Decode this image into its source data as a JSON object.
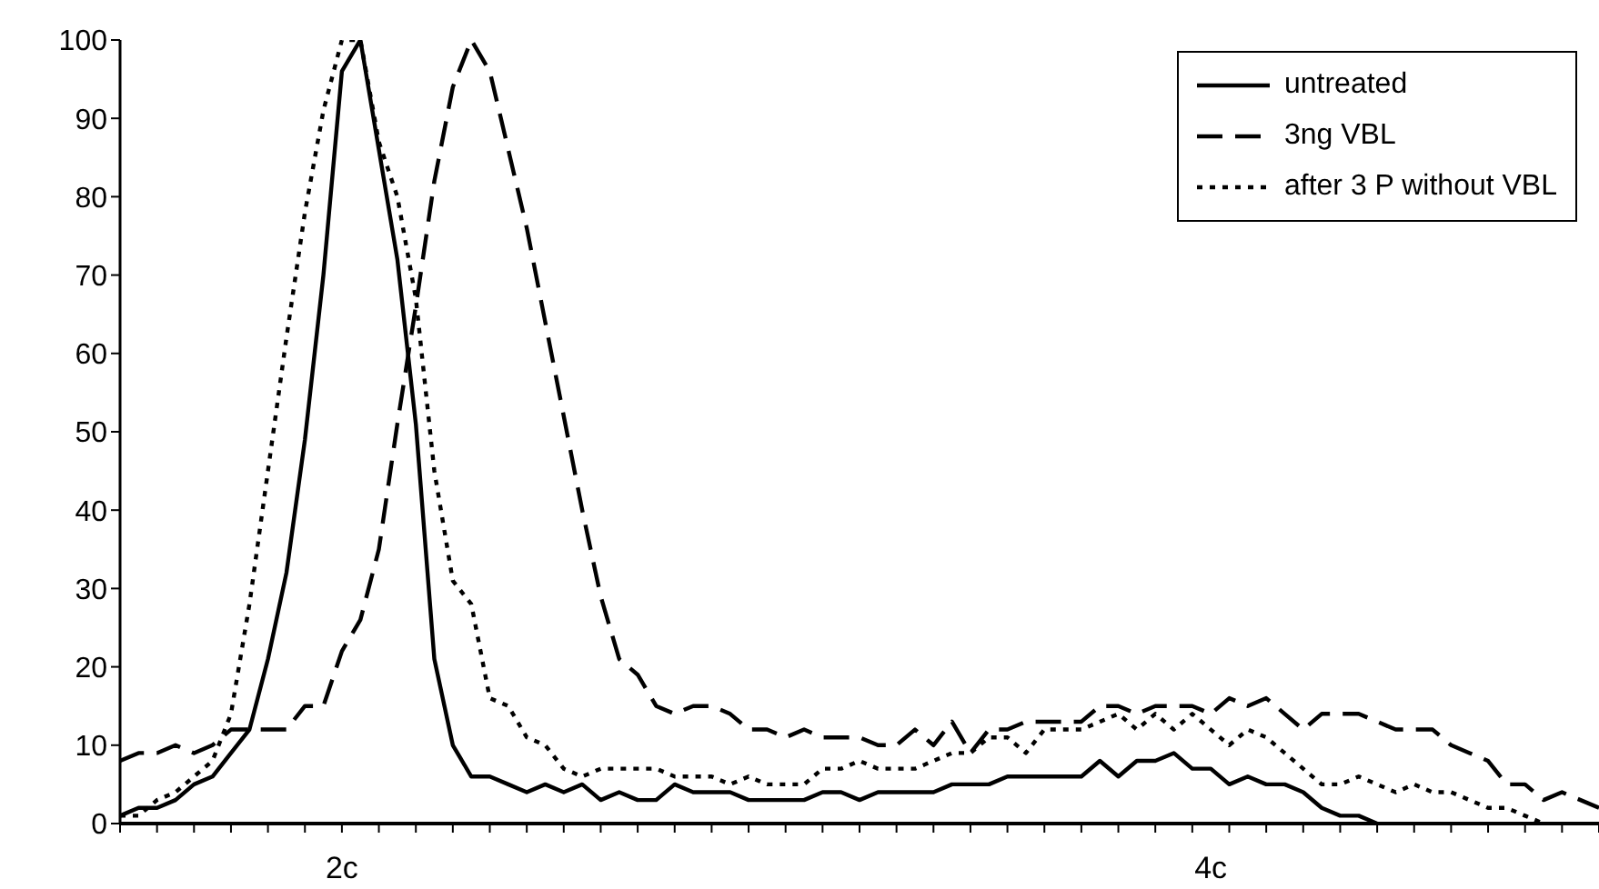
{
  "chart_data": {
    "type": "line",
    "categories": [
      null,
      null,
      null,
      null,
      null,
      null,
      null,
      null,
      null,
      null,
      null,
      null,
      "2c",
      null,
      null,
      null,
      null,
      null,
      null,
      null,
      null,
      null,
      null,
      null,
      null,
      null,
      null,
      null,
      null,
      null,
      null,
      null,
      null,
      null,
      null,
      null,
      null,
      null,
      null,
      null,
      null,
      null,
      null,
      null,
      null,
      null,
      null,
      null,
      null,
      null,
      null,
      null,
      null,
      null,
      null,
      null,
      null,
      null,
      null,
      "4c",
      null,
      null,
      null,
      null,
      null,
      null,
      null,
      null,
      null,
      null,
      null,
      null,
      null,
      null,
      null,
      null,
      null,
      null,
      null,
      null,
      null
    ],
    "series": [
      {
        "name": "untreated",
        "color": "#000000",
        "line_style": "solid",
        "values": [
          1,
          2,
          2,
          3,
          5,
          6,
          9,
          12,
          21,
          32,
          49,
          70,
          96,
          100,
          86,
          72,
          51,
          21,
          10,
          6,
          6,
          5,
          4,
          5,
          4,
          5,
          3,
          4,
          3,
          3,
          5,
          4,
          4,
          4,
          3,
          3,
          3,
          3,
          4,
          4,
          3,
          4,
          4,
          4,
          4,
          5,
          5,
          5,
          6,
          6,
          6,
          6,
          6,
          8,
          6,
          8,
          8,
          9,
          7,
          7,
          5,
          6,
          5,
          5,
          4,
          2,
          1,
          1,
          0,
          null,
          null,
          null,
          null,
          null,
          null,
          null,
          null,
          null,
          null,
          null,
          null
        ]
      },
      {
        "name": "3ng VBL",
        "color": "#000000",
        "line_style": "dashed",
        "values": [
          8,
          9,
          9,
          10,
          9,
          10,
          12,
          12,
          12,
          12,
          15,
          15,
          22,
          26,
          35,
          51,
          66,
          82,
          94,
          100,
          96,
          86,
          76,
          64,
          52,
          40,
          29,
          21,
          19,
          15,
          14,
          15,
          15,
          14,
          12,
          12,
          11,
          12,
          11,
          11,
          11,
          10,
          10,
          12,
          10,
          13,
          9,
          12,
          12,
          13,
          13,
          13,
          13,
          15,
          15,
          14,
          15,
          15,
          15,
          14,
          16,
          15,
          16,
          14,
          12,
          14,
          14,
          14,
          13,
          12,
          12,
          12,
          10,
          9,
          8,
          5,
          5,
          3,
          4,
          3,
          2
        ]
      },
      {
        "name": "after 3 P without VBL",
        "color": "#000000",
        "line_style": "dotted",
        "values": [
          1,
          1,
          3,
          4,
          6,
          8,
          14,
          28,
          45,
          62,
          78,
          91,
          100,
          100,
          87,
          80,
          67,
          45,
          31,
          28,
          16,
          15,
          11,
          10,
          7,
          6,
          7,
          7,
          7,
          7,
          6,
          6,
          6,
          5,
          6,
          5,
          5,
          5,
          7,
          7,
          8,
          7,
          7,
          7,
          8,
          9,
          9,
          11,
          11,
          9,
          12,
          12,
          12,
          13,
          14,
          12,
          14,
          12,
          14,
          12,
          10,
          12,
          11,
          9,
          7,
          5,
          5,
          6,
          5,
          4,
          5,
          4,
          4,
          3,
          2,
          2,
          1,
          0,
          null,
          null,
          null
        ]
      }
    ],
    "ylim": [
      0,
      100
    ],
    "yticks": [
      0,
      10,
      20,
      30,
      40,
      50,
      60,
      70,
      80,
      90,
      100
    ],
    "legend": "top right"
  }
}
